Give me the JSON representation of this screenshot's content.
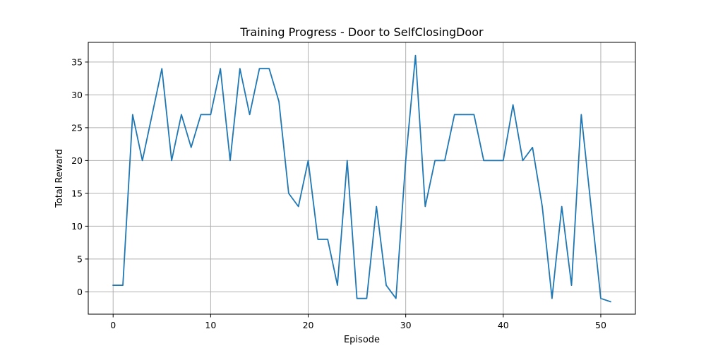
{
  "chart_data": {
    "type": "line",
    "title": "Training Progress - Door to SelfClosingDoor",
    "xlabel": "Episode",
    "ylabel": "Total Reward",
    "xlim": [
      -2.55,
      53.55
    ],
    "ylim": [
      -3.4,
      38.0
    ],
    "xticks": [
      0,
      10,
      20,
      30,
      40,
      50
    ],
    "yticks": [
      0,
      5,
      10,
      15,
      20,
      25,
      30,
      35
    ],
    "grid": true,
    "color": "#1f77b4",
    "series": [
      {
        "x": [
          0,
          1,
          2,
          3,
          4,
          5,
          6,
          7,
          8,
          9,
          10,
          11,
          12,
          13,
          14,
          15,
          16,
          17,
          18,
          19,
          20,
          21,
          22,
          23,
          24,
          25,
          26,
          27,
          28,
          29,
          30,
          31,
          32,
          33,
          34,
          35,
          36,
          37,
          38,
          39,
          40,
          41,
          42,
          43,
          44,
          45,
          46,
          47,
          48,
          49,
          50,
          51
        ],
        "values": [
          1,
          1,
          27,
          20,
          27,
          34,
          20,
          27,
          22,
          27,
          27,
          34,
          20,
          34,
          27,
          34,
          34,
          29,
          15,
          13,
          20,
          8,
          8,
          1,
          20,
          -1,
          -1,
          13,
          1,
          -1,
          20,
          36,
          13,
          20,
          20,
          27,
          27,
          27,
          20,
          20,
          20,
          28.5,
          20,
          22,
          13,
          -1,
          13,
          1,
          27,
          13,
          -1,
          -1.5
        ]
      }
    ]
  }
}
